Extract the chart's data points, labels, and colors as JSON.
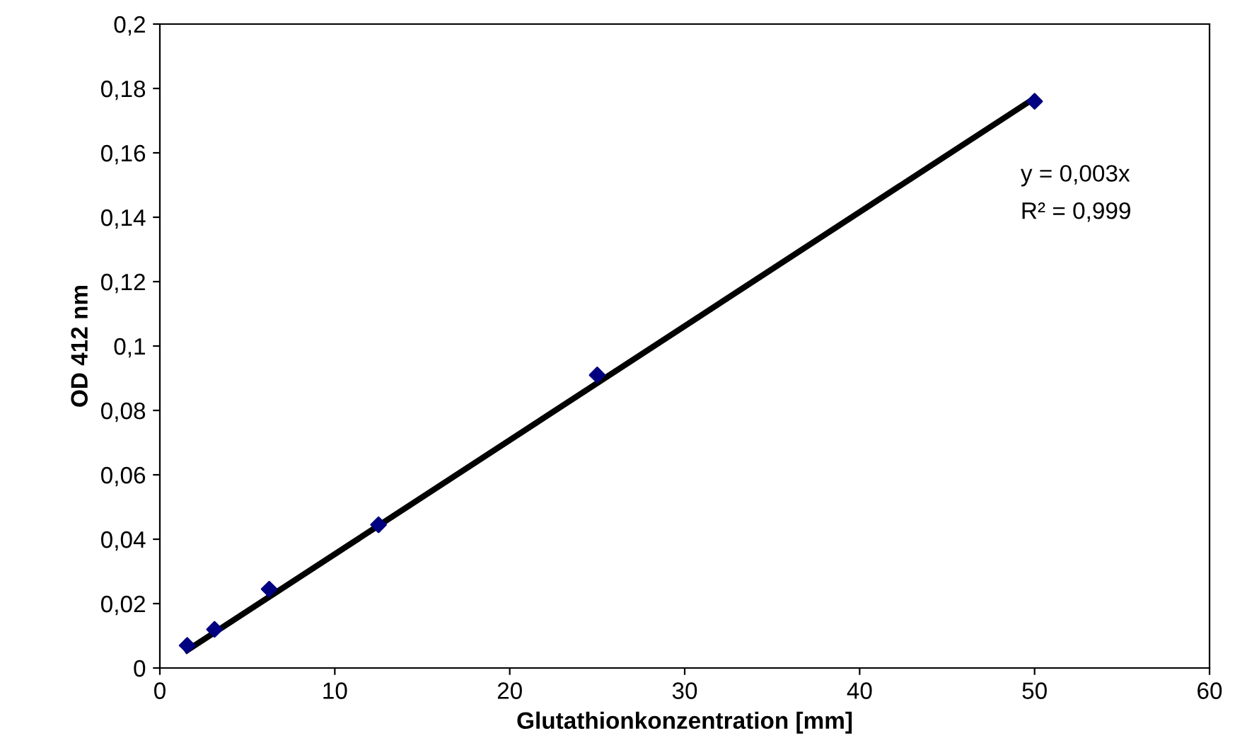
{
  "chart_data": {
    "type": "scatter",
    "xlabel": "Glutathionkonzentration [mm]",
    "ylabel": "OD 412 nm",
    "xlim": [
      0,
      60
    ],
    "xticks": [
      0,
      10,
      20,
      30,
      40,
      50,
      60
    ],
    "ylim": [
      0,
      0.2
    ],
    "yticks": [
      0,
      {
        "value": 0.02,
        "label": "0,02"
      },
      {
        "value": 0.04,
        "label": "0,04"
      },
      {
        "value": 0.06,
        "label": "0,06"
      },
      {
        "value": 0.08,
        "label": "0,08"
      },
      {
        "value": 0.1,
        "label": "0,1"
      },
      {
        "value": 0.12,
        "label": "0,12"
      },
      {
        "value": 0.14,
        "label": "0,14"
      },
      {
        "value": 0.16,
        "label": "0,16"
      },
      {
        "value": 0.18,
        "label": "0,18"
      },
      {
        "value": 0.2,
        "label": "0,2"
      }
    ],
    "series": [
      {
        "color": "#000080",
        "marker": "diamond",
        "x": [
          1.5625,
          3.125,
          6.25,
          12.5,
          25,
          50
        ],
        "values": [
          0.007,
          0.012,
          0.0245,
          0.0445,
          0.091,
          0.176
        ]
      },
      {
        "type": "line",
        "color": "#000000",
        "marker": "none",
        "line_style": "solid",
        "x": [
          1.5625,
          50
        ],
        "values": [
          0.0055,
          0.177
        ]
      }
    ],
    "annotations": [
      "y = 0,003x",
      "R² = 0,999"
    ],
    "grid": false,
    "legend": false
  }
}
